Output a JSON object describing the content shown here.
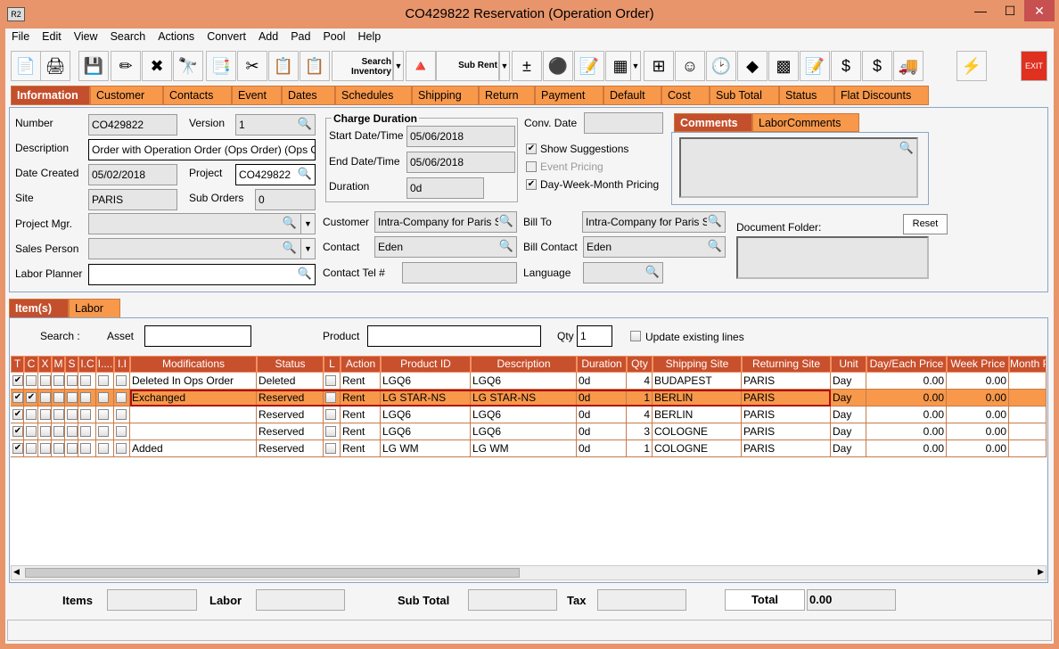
{
  "window": {
    "title": "CO429822 Reservation (Operation Order)",
    "logo": "R2",
    "minimize": "—",
    "maximize": "☐",
    "close": "✕"
  },
  "menu": [
    "File",
    "Edit",
    "View",
    "Search",
    "Actions",
    "Convert",
    "Add",
    "Pad",
    "Pool",
    "Help"
  ],
  "toolbar": {
    "search_inventory": "Search Inventory",
    "sub_rent": "Sub Rent",
    "exit": "EXIT"
  },
  "tabs": [
    "Information",
    "Customer",
    "Contacts",
    "Event",
    "Dates",
    "Schedules",
    "Shipping",
    "Return",
    "Payment",
    "Default",
    "Cost",
    "Sub Total",
    "Status",
    "Flat Discounts"
  ],
  "info": {
    "number_label": "Number",
    "number": "CO429822",
    "version_label": "Version",
    "version": "1",
    "description_label": "Description",
    "description": "Order with Operation Order (Ops Order) (Ops Order)",
    "date_created_label": "Date Created",
    "date_created": "05/02/2018",
    "project_label": "Project",
    "project": "CO429822",
    "site_label": "Site",
    "site": "PARIS",
    "sub_orders_label": "Sub Orders",
    "sub_orders": "0",
    "project_mgr_label": "Project Mgr.",
    "sales_person_label": "Sales Person",
    "labor_planner_label": "Labor Planner",
    "charge_duration_label": "Charge Duration",
    "start_label": "Start Date/Time",
    "start": "05/06/2018",
    "end_label": "End Date/Time",
    "end": "05/06/2018",
    "duration_label": "Duration",
    "duration": "0d",
    "conv_date_label": "Conv. Date",
    "show_suggestions": "Show Suggestions",
    "event_pricing": "Event Pricing",
    "dwm_pricing": "Day-Week-Month Pricing",
    "customer_label": "Customer",
    "customer": "Intra-Company for Paris Site",
    "contact_label": "Contact",
    "contact": "Eden",
    "contact_tel_label": "Contact Tel #",
    "bill_to_label": "Bill To",
    "bill_to": "Intra-Company for Paris Site",
    "bill_contact_label": "Bill Contact",
    "bill_contact": "Eden",
    "language_label": "Language",
    "comments_tabs": [
      "Comments",
      "LaborComments"
    ],
    "document_folder_label": "Document Folder:",
    "reset": "Reset"
  },
  "items_tabs": [
    "Item(s)",
    "Labor"
  ],
  "search": {
    "label": "Search :",
    "asset_label": "Asset",
    "product_label": "Product",
    "qty_label": "Qty",
    "qty": "1",
    "update_existing": "Update existing lines"
  },
  "grid": {
    "columns": [
      "T",
      "C",
      "X",
      "M",
      "S",
      "I.C",
      "I....",
      "I.I",
      "Modifications",
      "Status",
      "L",
      "Action",
      "Product ID",
      "Description",
      "Duration",
      "Qty",
      "Shipping Site",
      "Returning Site",
      "Unit",
      "Day/Each Price",
      "Week Price",
      "Month P"
    ],
    "rows": [
      {
        "t": true,
        "c": false,
        "mod": "Deleted In Ops Order",
        "status": "Deleted",
        "action": "Rent",
        "product": "LGQ6",
        "desc": "LGQ6",
        "duration": "0d",
        "qty": "4",
        "ship": "BUDAPEST",
        "ret": "PARIS",
        "unit": "Day",
        "day": "0.00",
        "week": "0.00",
        "selected": false
      },
      {
        "t": true,
        "c": true,
        "mod": "Exchanged",
        "status": "Reserved",
        "action": "Rent",
        "product": "LG STAR-NS",
        "desc": "LG STAR-NS",
        "duration": "0d",
        "qty": "1",
        "ship": "BERLIN",
        "ret": "PARIS",
        "unit": "Day",
        "day": "0.00",
        "week": "0.00",
        "selected": true
      },
      {
        "t": true,
        "c": false,
        "mod": "",
        "status": "Reserved",
        "action": "Rent",
        "product": "LGQ6",
        "desc": "LGQ6",
        "duration": "0d",
        "qty": "4",
        "ship": "BERLIN",
        "ret": "PARIS",
        "unit": "Day",
        "day": "0.00",
        "week": "0.00",
        "selected": false
      },
      {
        "t": true,
        "c": false,
        "mod": "",
        "status": "Reserved",
        "action": "Rent",
        "product": "LGQ6",
        "desc": "LGQ6",
        "duration": "0d",
        "qty": "3",
        "ship": "COLOGNE",
        "ret": "PARIS",
        "unit": "Day",
        "day": "0.00",
        "week": "0.00",
        "selected": false
      },
      {
        "t": true,
        "c": false,
        "mod": "Added",
        "status": "Reserved",
        "action": "Rent",
        "product": "LG WM",
        "desc": "LG WM",
        "duration": "0d",
        "qty": "1",
        "ship": "COLOGNE",
        "ret": "PARIS",
        "unit": "Day",
        "day": "0.00",
        "week": "0.00",
        "selected": false
      }
    ]
  },
  "totals": {
    "items_label": "Items",
    "labor_label": "Labor",
    "subtotal_label": "Sub Total",
    "tax_label": "Tax",
    "total_label": "Total",
    "total": "0.00"
  },
  "colors": {
    "frame": "#E8956B",
    "header": "#C8502D",
    "tab": "#F7984B",
    "active_tab": "#C44F2C",
    "selected_row": "#F7984B"
  }
}
